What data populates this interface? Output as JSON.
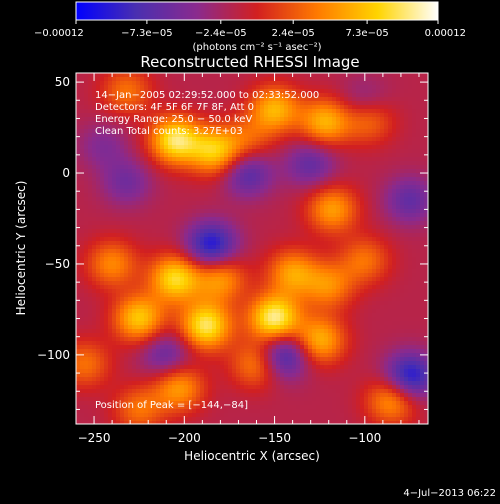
{
  "chart_data": {
    "type": "heatmap",
    "title": "Reconstructed RHESSI Image",
    "xlabel": "Heliocentric X (arcsec)",
    "ylabel": "Heliocentric Y (arcsec)",
    "xlim": [
      -260,
      -65
    ],
    "ylim": [
      -138,
      55
    ],
    "x_ticks": [
      -250,
      -200,
      -150,
      -100
    ],
    "x_tick_labels": [
      "−250",
      "−200",
      "−150",
      "−100"
    ],
    "y_ticks": [
      50,
      0,
      -50,
      -100
    ],
    "y_tick_labels": [
      "50",
      "0",
      "−50",
      "−100"
    ],
    "colorbar": {
      "range": [
        -0.00012,
        0.00012
      ],
      "ticks": [
        -0.00012,
        -7.3e-05,
        -2.4e-05,
        2.4e-05,
        7.3e-05,
        0.00012
      ],
      "tick_labels": [
        "−0.00012",
        "−7.3e−05",
        "−2.4e−05",
        "2.4e−05",
        "7.3e−05",
        "0.00012"
      ],
      "unit_label": "(photons cm⁻² s⁻¹ asec⁻²)",
      "colors": [
        "#0000ff",
        "#4a2fb0",
        "#8a2a8e",
        "#d22020",
        "#ff7a00",
        "#ffd400",
        "#ffffff"
      ]
    },
    "info_lines": [
      "14−Jan−2005 02:29:52.000 to 02:33:52.000",
      "Detectors: 4F 5F 6F 7F 8F, Att 0",
      "Energy Range: 25.0 − 50.0 keV",
      "Clean    Total counts: 3.27E+03"
    ],
    "peak_label": "Position of Peak = [−144,−84]",
    "peak": [
      -144,
      -84
    ],
    "blobs": [
      {
        "x": -205,
        "y": 18,
        "v": 0.00011
      },
      {
        "x": -183,
        "y": 12,
        "v": 9e-05
      },
      {
        "x": -150,
        "y": 35,
        "v": 8e-05
      },
      {
        "x": -122,
        "y": 28,
        "v": 8e-05
      },
      {
        "x": -98,
        "y": 30,
        "v": 6e-05
      },
      {
        "x": -232,
        "y": 45,
        "v": 5e-05
      },
      {
        "x": -165,
        "y": 18,
        "v": 4e-05
      },
      {
        "x": -118,
        "y": -20,
        "v": 7e-05
      },
      {
        "x": -205,
        "y": -58,
        "v": 0.0001
      },
      {
        "x": -180,
        "y": -58,
        "v": 7e-05
      },
      {
        "x": -140,
        "y": -55,
        "v": 7e-05
      },
      {
        "x": -150,
        "y": -80,
        "v": 0.00012
      },
      {
        "x": -188,
        "y": -84,
        "v": 0.00011
      },
      {
        "x": -225,
        "y": -80,
        "v": 9e-05
      },
      {
        "x": -125,
        "y": -92,
        "v": 8e-05
      },
      {
        "x": -240,
        "y": -50,
        "v": 6e-05
      },
      {
        "x": -120,
        "y": -62,
        "v": 6e-05
      },
      {
        "x": -203,
        "y": -118,
        "v": 7e-05
      },
      {
        "x": -225,
        "y": -130,
        "v": 5e-05
      },
      {
        "x": -85,
        "y": -125,
        "v": 7e-05
      },
      {
        "x": -100,
        "y": -48,
        "v": 5e-05
      },
      {
        "x": -160,
        "y": -105,
        "v": 6e-05
      },
      {
        "x": -255,
        "y": -105,
        "v": 5e-05
      },
      {
        "x": -185,
        "y": -40,
        "v": -9e-05
      },
      {
        "x": -165,
        "y": 0,
        "v": -6e-05
      },
      {
        "x": -100,
        "y": 38,
        "v": -4e-05
      },
      {
        "x": -145,
        "y": -100,
        "v": -8e-05
      },
      {
        "x": -75,
        "y": -112,
        "v": -9e-05
      },
      {
        "x": -232,
        "y": -5,
        "v": -4e-05
      },
      {
        "x": -75,
        "y": -15,
        "v": -5e-05
      },
      {
        "x": -130,
        "y": 5,
        "v": -5e-05
      },
      {
        "x": -210,
        "y": -100,
        "v": -5e-05
      },
      {
        "x": -245,
        "y": 15,
        "v": -3e-05
      }
    ]
  },
  "footer": {
    "date": "4−Jul−2013 06:22"
  }
}
